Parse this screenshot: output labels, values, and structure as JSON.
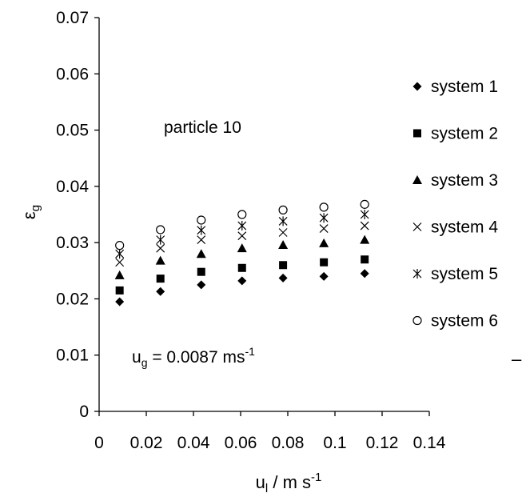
{
  "chart_data": {
    "type": "scatter",
    "xlabel": "u",
    "xlabel_sub": "l",
    "xlabel_rest": " / m s",
    "xlabel_sup": "-1",
    "ylabel": "ε",
    "ylabel_sub": "g",
    "xlim": [
      0,
      0.14
    ],
    "ylim": [
      0,
      0.07
    ],
    "xticks": [
      "0",
      "0.02",
      "0.04",
      "0.06",
      "0.08",
      "0.1",
      "0.12",
      "0.14"
    ],
    "yticks": [
      "0",
      "0.01",
      "0.02",
      "0.03",
      "0.04",
      "0.05",
      "0.06",
      "0.07"
    ],
    "grid": false,
    "legend_position": "right",
    "annotations": {
      "particle": "particle 10",
      "ug_main": "u",
      "ug_sub": "g",
      "ug_rest": " = 0.0087 ms",
      "ug_sup": "-1"
    },
    "legend_trailing_mark": "–",
    "x": [
      0.0087,
      0.026,
      0.0433,
      0.0606,
      0.078,
      0.0953,
      0.1126
    ],
    "series": [
      {
        "name": "system 1",
        "marker": "diamond",
        "values": [
          0.0195,
          0.0213,
          0.0225,
          0.0232,
          0.0237,
          0.024,
          0.0245
        ]
      },
      {
        "name": "system 2",
        "marker": "square",
        "values": [
          0.0215,
          0.0236,
          0.0248,
          0.0255,
          0.026,
          0.0265,
          0.027
        ]
      },
      {
        "name": "system 3",
        "marker": "triangle",
        "values": [
          0.0242,
          0.0268,
          0.028,
          0.029,
          0.0296,
          0.0299,
          0.0305
        ]
      },
      {
        "name": "system 4",
        "marker": "x",
        "values": [
          0.0265,
          0.029,
          0.0305,
          0.0312,
          0.0318,
          0.0325,
          0.033
        ]
      },
      {
        "name": "system 5",
        "marker": "star",
        "values": [
          0.028,
          0.0305,
          0.0322,
          0.033,
          0.0338,
          0.0344,
          0.035
        ]
      },
      {
        "name": "system 6",
        "marker": "circle",
        "values": [
          0.0295,
          0.0323,
          0.034,
          0.035,
          0.0358,
          0.0363,
          0.0368
        ]
      }
    ]
  }
}
